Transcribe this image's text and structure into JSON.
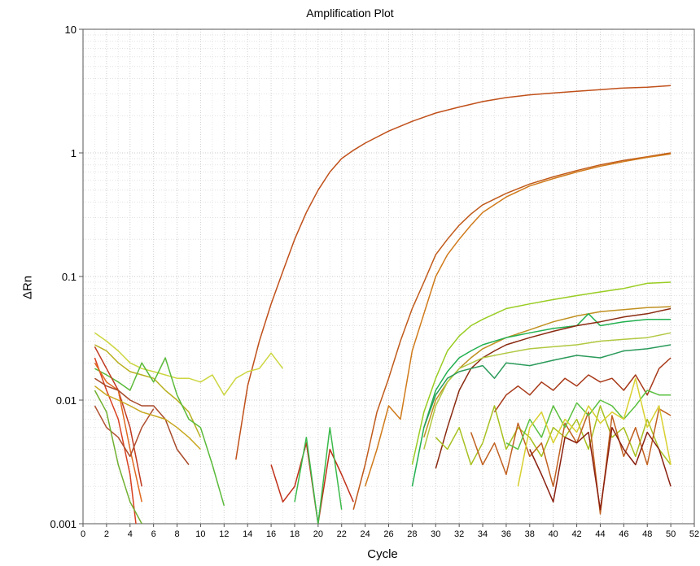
{
  "chart_data": {
    "type": "line",
    "title": "Amplification Plot",
    "xlabel": "Cycle",
    "ylabel": "ΔRn",
    "y_scale": "log",
    "xlim": [
      0,
      52
    ],
    "ylim": [
      0.001,
      10
    ],
    "x_ticks": [
      "0",
      "2",
      "4",
      "6",
      "8",
      "10",
      "12",
      "14",
      "16",
      "18",
      "20",
      "22",
      "24",
      "26",
      "28",
      "30",
      "32",
      "34",
      "36",
      "38",
      "40",
      "42",
      "44",
      "46",
      "48",
      "50",
      "52"
    ],
    "y_ticks": [
      "0.001",
      "0.01",
      "0.1",
      "1",
      "10"
    ],
    "grid": "dotted, major and minor",
    "legend": "none",
    "series": [
      {
        "color": "#c0501a",
        "x": [
          13,
          14,
          15,
          16,
          17,
          18,
          19,
          20,
          21,
          22,
          23,
          24,
          26,
          28,
          30,
          32,
          34,
          36,
          38,
          40,
          42,
          44,
          46,
          48,
          50
        ],
        "y": [
          0.0033,
          0.013,
          0.03,
          0.06,
          0.11,
          0.2,
          0.33,
          0.5,
          0.7,
          0.9,
          1.05,
          1.2,
          1.5,
          1.8,
          2.1,
          2.35,
          2.6,
          2.8,
          2.95,
          3.05,
          3.15,
          3.25,
          3.35,
          3.4,
          3.5
        ]
      },
      {
        "color": "#c05a1a",
        "x": [
          23,
          24,
          25,
          26,
          27,
          28,
          29,
          30,
          31,
          32,
          33,
          34,
          36,
          38,
          40,
          42,
          44,
          46,
          48,
          50
        ],
        "y": [
          0.0013,
          0.003,
          0.008,
          0.015,
          0.03,
          0.055,
          0.09,
          0.15,
          0.2,
          0.26,
          0.32,
          0.38,
          0.47,
          0.56,
          0.64,
          0.72,
          0.8,
          0.87,
          0.93,
          1.0
        ]
      },
      {
        "color": "#d07a1a",
        "x": [
          24,
          25,
          26,
          27,
          28,
          29,
          30,
          31,
          32,
          33,
          34,
          36,
          38,
          40,
          42,
          44,
          46,
          48,
          50
        ],
        "y": [
          0.002,
          0.004,
          0.009,
          0.007,
          0.025,
          0.05,
          0.1,
          0.15,
          0.2,
          0.26,
          0.33,
          0.44,
          0.54,
          0.62,
          0.7,
          0.78,
          0.85,
          0.92,
          0.98
        ]
      },
      {
        "color": "#99cc22",
        "x": [
          28,
          29,
          30,
          31,
          32,
          33,
          34,
          36,
          38,
          40,
          42,
          44,
          46,
          48,
          50
        ],
        "y": [
          0.003,
          0.008,
          0.015,
          0.025,
          0.033,
          0.04,
          0.045,
          0.055,
          0.06,
          0.065,
          0.07,
          0.075,
          0.08,
          0.088,
          0.09
        ]
      },
      {
        "color": "#c09020",
        "x": [
          29,
          30,
          31,
          32,
          33,
          34,
          36,
          38,
          40,
          42,
          44,
          46,
          48,
          50
        ],
        "y": [
          0.005,
          0.01,
          0.014,
          0.018,
          0.022,
          0.026,
          0.032,
          0.037,
          0.043,
          0.048,
          0.052,
          0.054,
          0.056,
          0.057
        ]
      },
      {
        "color": "#22b050",
        "x": [
          28,
          29,
          30,
          31,
          32,
          33,
          34,
          36,
          38,
          40,
          42,
          43,
          44,
          46,
          48,
          50
        ],
        "y": [
          0.002,
          0.006,
          0.012,
          0.017,
          0.022,
          0.025,
          0.028,
          0.032,
          0.035,
          0.038,
          0.04,
          0.05,
          0.04,
          0.043,
          0.045,
          0.045
        ]
      },
      {
        "color": "#8a2a10",
        "x": [
          30,
          31,
          32,
          33,
          34,
          35,
          36,
          38,
          40,
          42,
          44,
          46,
          48,
          50
        ],
        "y": [
          0.0028,
          0.006,
          0.012,
          0.018,
          0.022,
          0.025,
          0.028,
          0.032,
          0.036,
          0.04,
          0.043,
          0.047,
          0.05,
          0.055
        ]
      },
      {
        "color": "#b0c840",
        "x": [
          29,
          30,
          31,
          32,
          34,
          36,
          38,
          40,
          42,
          44,
          46,
          48,
          50
        ],
        "y": [
          0.004,
          0.009,
          0.014,
          0.018,
          0.022,
          0.024,
          0.026,
          0.027,
          0.028,
          0.03,
          0.031,
          0.032,
          0.035
        ]
      },
      {
        "color": "#2a9a5a",
        "x": [
          29,
          30,
          31,
          32,
          33,
          34,
          35,
          36,
          38,
          40,
          42,
          44,
          46,
          48,
          50
        ],
        "y": [
          0.006,
          0.011,
          0.015,
          0.017,
          0.018,
          0.019,
          0.015,
          0.02,
          0.019,
          0.021,
          0.023,
          0.022,
          0.025,
          0.026,
          0.028
        ]
      },
      {
        "color": "#a83a1a",
        "x": [
          35,
          36,
          37,
          38,
          39,
          40,
          41,
          42,
          43,
          44,
          45,
          46,
          47,
          48,
          49,
          50
        ],
        "y": [
          0.008,
          0.011,
          0.013,
          0.011,
          0.014,
          0.012,
          0.015,
          0.013,
          0.016,
          0.014,
          0.015,
          0.012,
          0.016,
          0.011,
          0.018,
          0.022
        ]
      },
      {
        "color": "#ccd640",
        "x": [
          1,
          2,
          3,
          4,
          5,
          6,
          7,
          8,
          9,
          10,
          11,
          12,
          13,
          14,
          15,
          16,
          17
        ],
        "y": [
          0.035,
          0.03,
          0.025,
          0.02,
          0.018,
          0.017,
          0.016,
          0.015,
          0.015,
          0.014,
          0.016,
          0.011,
          0.015,
          0.017,
          0.018,
          0.024,
          0.018
        ]
      },
      {
        "color": "#b8b020",
        "x": [
          1,
          2,
          3,
          4,
          5,
          6,
          7,
          8,
          9,
          10
        ],
        "y": [
          0.028,
          0.025,
          0.02,
          0.017,
          0.016,
          0.015,
          0.012,
          0.01,
          0.008,
          0.005
        ]
      },
      {
        "color": "#5aba3a",
        "x": [
          1,
          2,
          3,
          4,
          5,
          6,
          7,
          8,
          9,
          10,
          11,
          12
        ],
        "y": [
          0.018,
          0.016,
          0.014,
          0.012,
          0.02,
          0.014,
          0.022,
          0.011,
          0.007,
          0.006,
          0.003,
          0.0014
        ]
      },
      {
        "color": "#c03a20",
        "x": [
          1,
          2,
          3,
          4,
          5
        ],
        "y": [
          0.027,
          0.018,
          0.012,
          0.006,
          0.002
        ]
      },
      {
        "color": "#d84020",
        "x": [
          1,
          2,
          3,
          4,
          4.5
        ],
        "y": [
          0.022,
          0.012,
          0.007,
          0.0025,
          0.001
        ]
      },
      {
        "color": "#e06a20",
        "x": [
          1,
          2,
          3,
          4,
          5
        ],
        "y": [
          0.02,
          0.014,
          0.012,
          0.004,
          0.0015
        ]
      },
      {
        "color": "#a84a2a",
        "x": [
          1,
          2,
          3,
          4,
          5,
          6,
          7,
          8,
          9
        ],
        "y": [
          0.015,
          0.013,
          0.012,
          0.01,
          0.009,
          0.009,
          0.007,
          0.004,
          0.003
        ]
      },
      {
        "color": "#b05030",
        "x": [
          1,
          2,
          3,
          4,
          5,
          6
        ],
        "y": [
          0.009,
          0.006,
          0.005,
          0.0035,
          0.006,
          0.0085
        ]
      },
      {
        "color": "#70b030",
        "x": [
          1,
          2,
          3,
          4,
          5
        ],
        "y": [
          0.012,
          0.008,
          0.003,
          0.0015,
          0.001
        ]
      },
      {
        "color": "#c8a820",
        "x": [
          1,
          2,
          3,
          4,
          5,
          6,
          7,
          8,
          9,
          10
        ],
        "y": [
          0.013,
          0.011,
          0.01,
          0.009,
          0.008,
          0.0075,
          0.007,
          0.006,
          0.005,
          0.004
        ]
      },
      {
        "color": "#c03018",
        "x": [
          16,
          17,
          18,
          19,
          20,
          21,
          22,
          23
        ],
        "y": [
          0.003,
          0.0015,
          0.002,
          0.0045,
          0.001,
          0.004,
          0.0025,
          0.0015
        ]
      },
      {
        "color": "#3aba4a",
        "x": [
          18,
          19,
          20,
          21,
          22
        ],
        "y": [
          0.0015,
          0.005,
          0.001,
          0.006,
          0.0013
        ]
      },
      {
        "color": "#a8c020",
        "x": [
          30,
          31,
          32,
          33,
          34,
          35,
          36,
          37,
          38,
          39,
          40,
          41,
          42,
          43,
          44,
          45,
          46,
          47,
          48,
          49,
          50
        ],
        "y": [
          0.005,
          0.004,
          0.006,
          0.003,
          0.0045,
          0.009,
          0.004,
          0.006,
          0.005,
          0.0035,
          0.006,
          0.005,
          0.007,
          0.004,
          0.009,
          0.005,
          0.006,
          0.0035,
          0.007,
          0.004,
          0.003
        ]
      },
      {
        "color": "#c06020",
        "x": [
          33,
          34,
          35,
          36,
          37,
          38,
          39,
          40,
          41,
          42,
          43,
          44,
          45,
          46,
          47,
          48,
          49,
          50
        ],
        "y": [
          0.0055,
          0.003,
          0.0045,
          0.0025,
          0.0065,
          0.0035,
          0.0045,
          0.002,
          0.0065,
          0.0045,
          0.008,
          0.0012,
          0.0075,
          0.0035,
          0.006,
          0.003,
          0.0085,
          0.0075
        ]
      },
      {
        "color": "#5ac040",
        "x": [
          36,
          37,
          38,
          39,
          40,
          41,
          42,
          43,
          44,
          45,
          46,
          47,
          48,
          49,
          50
        ],
        "y": [
          0.0045,
          0.004,
          0.007,
          0.005,
          0.009,
          0.006,
          0.0095,
          0.0075,
          0.01,
          0.009,
          0.007,
          0.009,
          0.012,
          0.011,
          0.011
        ]
      },
      {
        "color": "#d8d030",
        "x": [
          37,
          38,
          39,
          40,
          41,
          42,
          43,
          44,
          45,
          46,
          47,
          48,
          49,
          50
        ],
        "y": [
          0.002,
          0.006,
          0.008,
          0.0045,
          0.007,
          0.0055,
          0.009,
          0.0065,
          0.008,
          0.007,
          0.015,
          0.006,
          0.009,
          0.003
        ]
      },
      {
        "color": "#8a2010",
        "x": [
          38,
          39,
          40,
          41,
          42,
          43,
          44,
          45,
          46,
          47,
          48,
          49,
          50
        ],
        "y": [
          0.004,
          0.0025,
          0.0015,
          0.005,
          0.0045,
          0.0055,
          0.0013,
          0.006,
          0.004,
          0.003,
          0.0055,
          0.004,
          0.002
        ]
      }
    ]
  }
}
